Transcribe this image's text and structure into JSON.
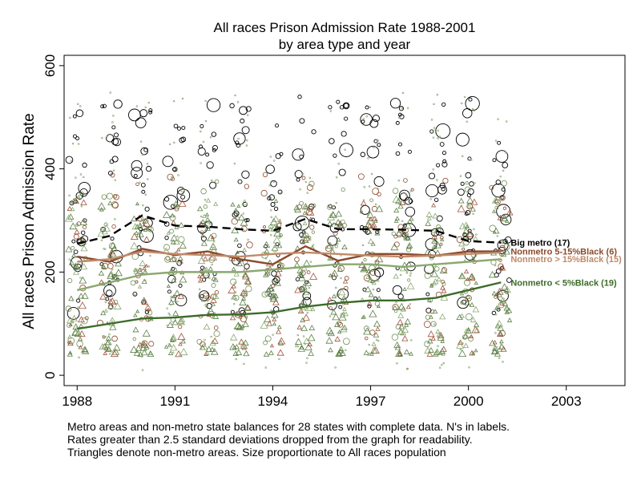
{
  "chart_data": {
    "type": "scatter",
    "title": "All races Prison Admission Rate 1988-2001",
    "subtitle": "by area type and year",
    "ylabel": "All races Prison Admission Rate",
    "xlabel": "",
    "xlim": [
      1987.6,
      2004.8
    ],
    "ylim": [
      -20,
      620
    ],
    "x_ticks": [
      1988,
      1991,
      1994,
      1997,
      2000,
      2003
    ],
    "y_ticks": [
      0,
      200,
      400,
      600
    ],
    "grid": false,
    "x": [
      1988,
      1989,
      1990,
      1991,
      1992,
      1993,
      1994,
      1995,
      1996,
      1997,
      1998,
      1999,
      2000,
      2001
    ],
    "series": [
      {
        "name": "Big metro  (17)",
        "color": "#000000",
        "dash": true,
        "values": [
          255,
          270,
          310,
          290,
          288,
          283,
          280,
          303,
          283,
          283,
          282,
          280,
          260,
          257
        ]
      },
      {
        "name": "Nonmetro 5-15%Black (6)",
        "color": "#8b4a2b",
        "dash": false,
        "values": [
          230,
          220,
          245,
          233,
          240,
          225,
          215,
          250,
          222,
          235,
          235,
          232,
          240,
          240
        ]
      },
      {
        "name": "Nonmetro > 15%Black (15)",
        "color": "#c08a6a",
        "dash": false,
        "values": [
          220,
          225,
          240,
          235,
          233,
          230,
          235,
          238,
          235,
          232,
          230,
          232,
          235,
          238
        ]
      },
      {
        "name": "Nonmetro < 5%Black (19)",
        "color": "#3d6b2a",
        "dash": false,
        "values": [
          90,
          100,
          110,
          112,
          117,
          118,
          122,
          133,
          140,
          145,
          145,
          150,
          165,
          180
        ]
      },
      {
        "name": "",
        "color": "#8aa870",
        "dash": false,
        "values": [
          165,
          180,
          195,
          200,
          200,
          200,
          205,
          210,
          215,
          215,
          210,
          215,
          220,
          225
        ]
      }
    ]
  },
  "footnote": [
    "Metro areas and non-metro state balances for 28 states with complete data. N's in labels.",
    "Rates greater than 2.5 standard deviations dropped from the graph for readability.",
    "Triangles denote non-metro areas. Size proportionate to All races population"
  ]
}
